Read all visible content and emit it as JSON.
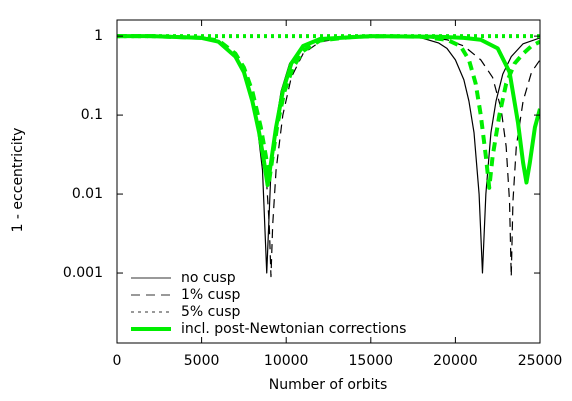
{
  "chart_data": {
    "type": "line",
    "x_label": "Number of orbits",
    "y_label": "1 - eccentricity",
    "log_y": true,
    "xlim": [
      0,
      25000
    ],
    "xticks": [
      0,
      5000,
      10000,
      15000,
      20000,
      25000
    ],
    "ylim": [
      0.00013,
      1.6
    ],
    "yticks": [
      0.001,
      0.01,
      0.1,
      1
    ],
    "legend": {
      "corner": "lower left",
      "entries": [
        {
          "label": "no cusp",
          "color": "#999999",
          "dash": "solid"
        },
        {
          "label": "1% cusp",
          "color": "#999999",
          "dash": "dashed"
        },
        {
          "label": "5% cusp",
          "color": "#999999",
          "dash": "dotted"
        },
        {
          "label": "incl. post-Newtonian corrections",
          "color": "#00ee00",
          "dash": "solid"
        }
      ]
    },
    "series": [
      {
        "color": "#000000",
        "dash": "solid",
        "x": [
          0,
          2000,
          4000,
          5000,
          6000,
          7000,
          7500,
          8000,
          8300,
          8600,
          8850,
          9100,
          9400,
          9700,
          10200,
          11000,
          12000,
          14000,
          15350,
          17000,
          18000,
          19000,
          19500,
          20000,
          20500,
          20800,
          21100,
          21400,
          21600,
          21800,
          22100,
          22400,
          22800,
          23300,
          24000,
          25000
        ],
        "values": [
          1,
          1,
          0.99,
          0.95,
          0.85,
          0.55,
          0.35,
          0.15,
          0.07,
          0.02,
          0.001,
          0.02,
          0.08,
          0.2,
          0.45,
          0.75,
          0.92,
          0.99,
          1,
          0.98,
          0.95,
          0.82,
          0.7,
          0.5,
          0.28,
          0.15,
          0.06,
          0.01,
          0.001,
          0.01,
          0.06,
          0.15,
          0.33,
          0.55,
          0.8,
          0.95
        ]
      },
      {
        "color": "#000000",
        "dash": "dashed",
        "x": [
          0,
          2000,
          5000,
          6000,
          7000,
          7500,
          8000,
          8500,
          8800,
          9000,
          9100,
          9200,
          9400,
          9800,
          10300,
          11000,
          12000,
          14000,
          16000,
          18000,
          19500,
          20500,
          21500,
          22200,
          22700,
          23000,
          23200,
          23300,
          23400,
          23600,
          24000,
          24500,
          25000
        ],
        "values": [
          1,
          1,
          0.95,
          0.88,
          0.6,
          0.4,
          0.2,
          0.07,
          0.02,
          0.004,
          0.0009,
          0.004,
          0.02,
          0.1,
          0.3,
          0.6,
          0.85,
          0.98,
          1,
          0.98,
          0.9,
          0.75,
          0.5,
          0.3,
          0.12,
          0.04,
          0.008,
          0.0009,
          0.008,
          0.04,
          0.15,
          0.35,
          0.5
        ]
      },
      {
        "color": "#000000",
        "dash": "dotted",
        "x": [
          0,
          5000,
          10000,
          15000,
          20000,
          25000
        ],
        "values": [
          1,
          1,
          1,
          1,
          1,
          1
        ]
      },
      {
        "color": "#00ee00",
        "dash": "solid",
        "x": [
          0,
          2000,
          5000,
          6000,
          7000,
          7500,
          8000,
          8400,
          8700,
          8900,
          9100,
          9400,
          9800,
          10300,
          11000,
          12000,
          15000,
          19000,
          20500,
          21500,
          22500,
          23200,
          23700,
          24000,
          24200,
          24400,
          24700,
          25000
        ],
        "values": [
          1,
          1,
          0.95,
          0.85,
          0.55,
          0.35,
          0.15,
          0.06,
          0.025,
          0.013,
          0.025,
          0.07,
          0.2,
          0.45,
          0.75,
          0.92,
          1,
          0.98,
          0.95,
          0.9,
          0.7,
          0.35,
          0.08,
          0.025,
          0.014,
          0.025,
          0.07,
          0.12
        ]
      },
      {
        "color": "#00ee00",
        "dash": "dashed",
        "x": [
          0,
          2000,
          5000,
          6000,
          7000,
          7500,
          8000,
          8500,
          8800,
          9000,
          9200,
          9500,
          9900,
          10400,
          11000,
          12000,
          14000,
          16000,
          18000,
          19500,
          20300,
          20800,
          21200,
          21500,
          21800,
          22000,
          22200,
          22600,
          23000,
          23500,
          24000,
          24500,
          25000
        ],
        "values": [
          1,
          1,
          0.95,
          0.88,
          0.6,
          0.4,
          0.2,
          0.07,
          0.03,
          0.015,
          0.03,
          0.08,
          0.2,
          0.4,
          0.65,
          0.88,
          0.98,
          1,
          0.98,
          0.9,
          0.75,
          0.5,
          0.25,
          0.1,
          0.03,
          0.012,
          0.03,
          0.1,
          0.25,
          0.45,
          0.6,
          0.75,
          0.85
        ]
      },
      {
        "color": "#00ee00",
        "dash": "dotted",
        "x": [
          0,
          5000,
          10000,
          15000,
          20000,
          25000
        ],
        "values": [
          1,
          1,
          1,
          1,
          1,
          1
        ]
      }
    ]
  }
}
